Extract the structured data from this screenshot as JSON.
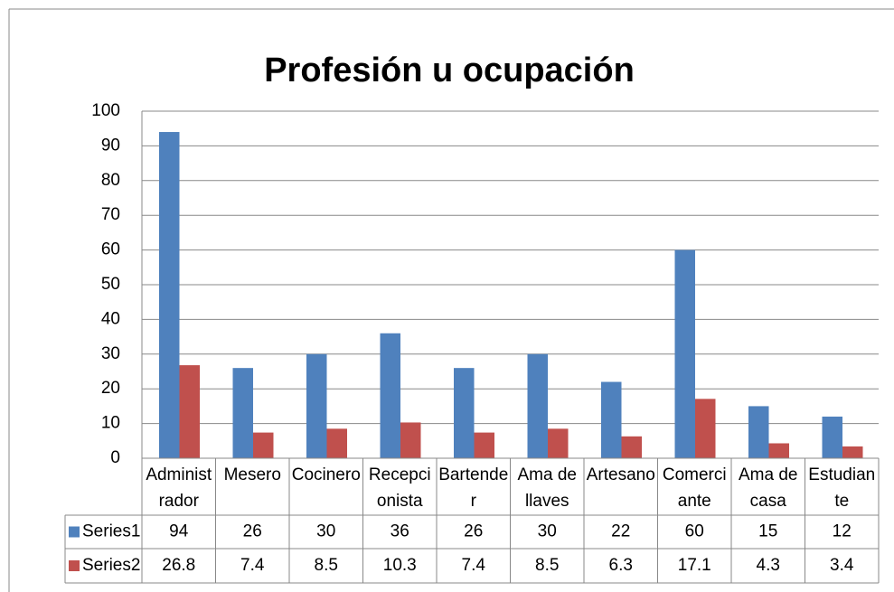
{
  "chart_data": {
    "type": "bar",
    "title": "Profesión u ocupación",
    "categories": [
      "Administrador",
      "Mesero",
      "Cocinero",
      "Recepcionista",
      "Bartender",
      "Ama de llaves",
      "Artesano",
      "Comerciante",
      "Ama de casa",
      "Estudiante"
    ],
    "series": [
      {
        "name": "Series1",
        "color": "#4f81bd",
        "values": [
          94,
          26,
          30,
          36,
          26,
          30,
          22,
          60,
          15,
          12
        ]
      },
      {
        "name": "Series2",
        "color": "#c0504d",
        "values": [
          26.8,
          7.4,
          8.5,
          10.3,
          7.4,
          8.5,
          6.3,
          17.1,
          4.3,
          3.4
        ]
      }
    ],
    "ylim": [
      0,
      100
    ],
    "yticks": [
      0,
      10,
      20,
      30,
      40,
      50,
      60,
      70,
      80,
      90,
      100
    ],
    "grid": true,
    "data_table": true
  }
}
